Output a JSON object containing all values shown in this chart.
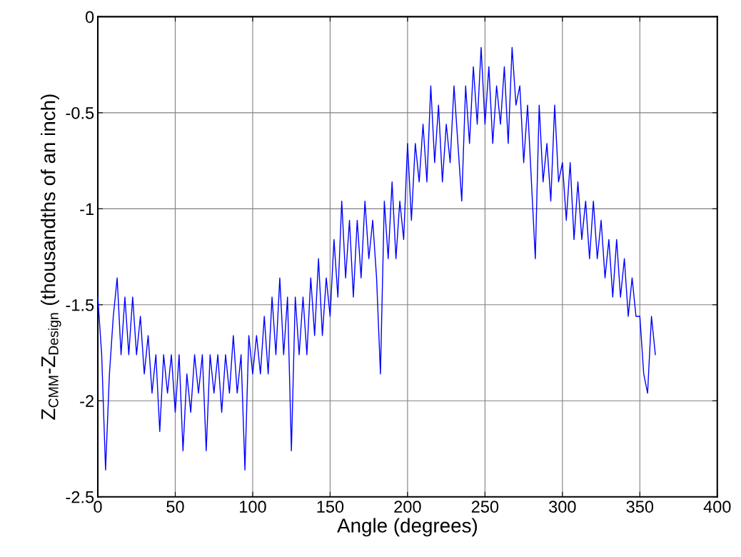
{
  "chart_data": {
    "type": "line",
    "xlabel": "Angle (degrees)",
    "ylabel": "Z$_{CMM}$-Z$_{Design}$ (thousandths of an inch)",
    "x": [
      0,
      2.5,
      5,
      7.5,
      10,
      12.5,
      15,
      17.5,
      20,
      22.5,
      25,
      27.5,
      30,
      32.5,
      35,
      37.5,
      40,
      42.5,
      45,
      47.5,
      50,
      52.5,
      55,
      57.5,
      60,
      62.5,
      65,
      67.5,
      70,
      72.5,
      75,
      77.5,
      80,
      82.5,
      85,
      87.5,
      90,
      92.5,
      95,
      97.5,
      100,
      102.5,
      105,
      107.5,
      110,
      112.5,
      115,
      117.5,
      120,
      122.5,
      125,
      127.5,
      130,
      132.5,
      135,
      137.5,
      140,
      142.5,
      145,
      147.5,
      150,
      152.5,
      155,
      157.5,
      160,
      162.5,
      165,
      167.5,
      170,
      172.5,
      175,
      177.5,
      180,
      182.5,
      185,
      187.5,
      190,
      192.5,
      195,
      197.5,
      200,
      202.5,
      205,
      207.5,
      210,
      212.5,
      215,
      217.5,
      220,
      222.5,
      225,
      227.5,
      230,
      232.5,
      235,
      237.5,
      240,
      242.5,
      245,
      247.5,
      250,
      252.5,
      255,
      257.5,
      260,
      262.5,
      265,
      267.5,
      270,
      272.5,
      275,
      277.5,
      280,
      282.5,
      285,
      287.5,
      290,
      292.5,
      295,
      297.5,
      300,
      302.5,
      305,
      307.5,
      310,
      312.5,
      315,
      317.5,
      320,
      322.5,
      325,
      327.5,
      330,
      332.5,
      335,
      337.5,
      340,
      342.5,
      345,
      347.5,
      350,
      352.5,
      355,
      357.5,
      360
    ],
    "series": [
      {
        "color": "#0000ff",
        "values": [
          -1.46,
          -1.76,
          -2.36,
          -1.86,
          -1.56,
          -1.36,
          -1.76,
          -1.46,
          -1.76,
          -1.46,
          -1.76,
          -1.56,
          -1.86,
          -1.66,
          -1.96,
          -1.76,
          -2.16,
          -1.76,
          -1.96,
          -1.76,
          -2.06,
          -1.76,
          -2.26,
          -1.86,
          -2.06,
          -1.76,
          -1.96,
          -1.76,
          -2.26,
          -1.76,
          -1.96,
          -1.76,
          -2.06,
          -1.76,
          -1.96,
          -1.66,
          -1.96,
          -1.76,
          -2.36,
          -1.66,
          -1.86,
          -1.66,
          -1.86,
          -1.56,
          -1.86,
          -1.46,
          -1.76,
          -1.36,
          -1.76,
          -1.46,
          -2.26,
          -1.46,
          -1.76,
          -1.46,
          -1.76,
          -1.36,
          -1.66,
          -1.26,
          -1.66,
          -1.36,
          -1.56,
          -1.16,
          -1.46,
          -0.96,
          -1.36,
          -1.06,
          -1.46,
          -1.06,
          -1.36,
          -0.96,
          -1.26,
          -1.06,
          -1.36,
          -1.86,
          -0.96,
          -1.26,
          -0.86,
          -1.26,
          -0.96,
          -1.16,
          -0.66,
          -1.06,
          -0.66,
          -0.86,
          -0.56,
          -0.86,
          -0.36,
          -0.76,
          -0.46,
          -0.86,
          -0.56,
          -0.76,
          -0.36,
          -0.66,
          -0.96,
          -0.36,
          -0.66,
          -0.26,
          -0.56,
          -0.16,
          -0.56,
          -0.26,
          -0.66,
          -0.36,
          -0.56,
          -0.26,
          -0.66,
          -0.16,
          -0.46,
          -0.36,
          -0.76,
          -0.46,
          -0.86,
          -1.26,
          -0.46,
          -0.86,
          -0.66,
          -0.96,
          -0.46,
          -0.86,
          -0.76,
          -1.06,
          -0.76,
          -1.16,
          -0.86,
          -1.16,
          -0.96,
          -1.26,
          -0.96,
          -1.26,
          -1.06,
          -1.36,
          -1.16,
          -1.46,
          -1.16,
          -1.46,
          -1.26,
          -1.56,
          -1.36,
          -1.56,
          -1.56,
          -1.86,
          -1.96,
          -1.56,
          -1.76
        ]
      }
    ],
    "xlim": [
      0,
      400
    ],
    "xticks": [
      0,
      50,
      100,
      150,
      200,
      250,
      300,
      350,
      400
    ],
    "ylim": [
      -2.5,
      0
    ],
    "yticks": [
      -2.5,
      -2,
      -1.5,
      -1,
      -0.5,
      0
    ],
    "grid": true,
    "marker": "none",
    "line_style": "solid"
  }
}
